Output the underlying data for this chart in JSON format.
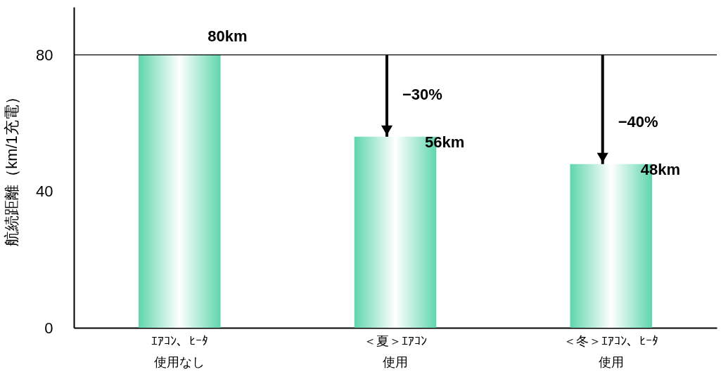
{
  "chart_data": {
    "type": "bar",
    "ylabel": "航続距離（km/1充電）",
    "categories": [
      "ｴｱｺﾝ、ﾋｰﾀ使用なし",
      "＜夏＞ｴｱｺﾝ使用",
      "＜冬＞ｴｱｺﾝ、ﾋｰﾀ使用"
    ],
    "values": [
      80,
      56,
      48
    ],
    "color": "#5fd6ac",
    "value_labels": [
      "80km",
      "56km",
      "48km"
    ],
    "annotations": [
      "−30%",
      "−40%"
    ],
    "ref_lines": [
      {
        "axis": "y",
        "value": 80,
        "color": "#000000"
      }
    ],
    "ylim": [
      0,
      94
    ],
    "yticks": [
      0,
      40,
      80
    ],
    "grid": false
  }
}
